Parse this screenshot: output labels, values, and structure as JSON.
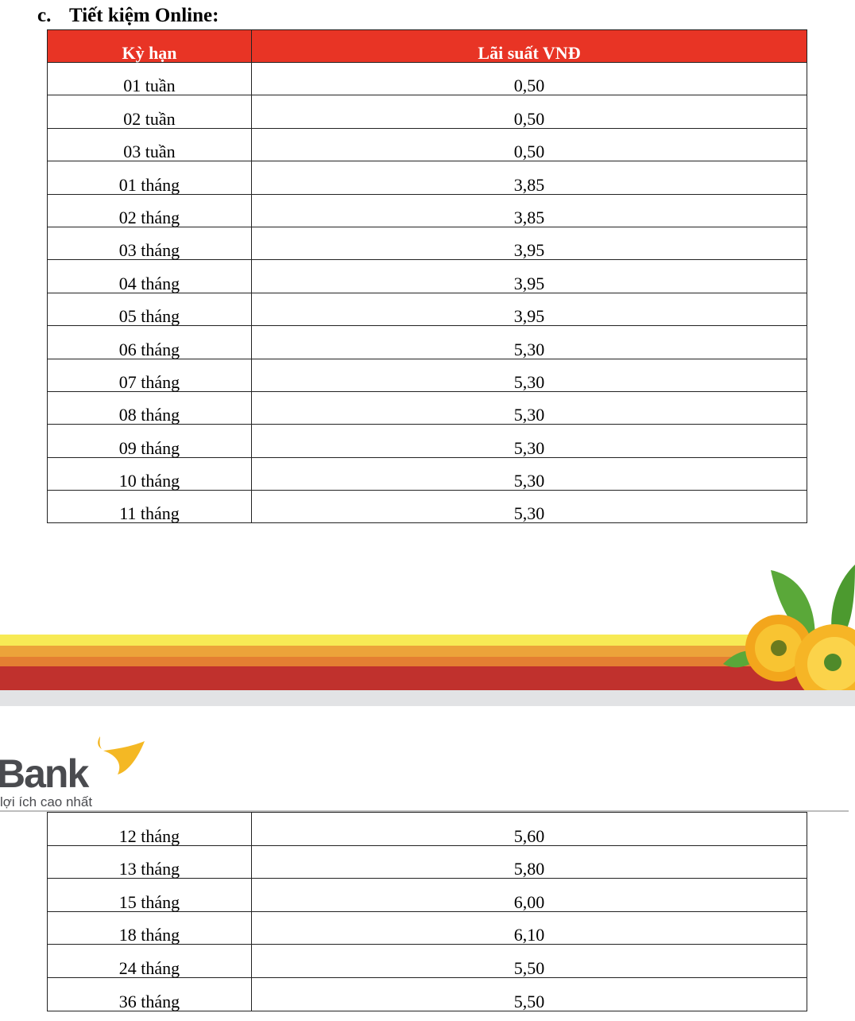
{
  "section": {
    "number": "c.",
    "title": "Tiết kiệm Online:"
  },
  "table_headers": [
    "Kỳ hạn",
    "Lãi suất VNĐ"
  ],
  "table1_rows": [
    {
      "term": "01 tuần",
      "rate": "0,50"
    },
    {
      "term": "02 tuần",
      "rate": "0,50"
    },
    {
      "term": "03 tuần",
      "rate": "0,50"
    },
    {
      "term": "01 tháng",
      "rate": "3,85"
    },
    {
      "term": "02 tháng",
      "rate": "3,85"
    },
    {
      "term": "03 tháng",
      "rate": "3,95"
    },
    {
      "term": "04 tháng",
      "rate": "3,95"
    },
    {
      "term": "05 tháng",
      "rate": "3,95"
    },
    {
      "term": "06 tháng",
      "rate": "5,30"
    },
    {
      "term": "07 tháng",
      "rate": "5,30"
    },
    {
      "term": "08 tháng",
      "rate": "5,30"
    },
    {
      "term": "09 tháng",
      "rate": "5,30"
    },
    {
      "term": "10 tháng",
      "rate": "5,30"
    },
    {
      "term": "11 tháng",
      "rate": "5,30"
    }
  ],
  "logo": {
    "text": "Bank",
    "tagline": "lợi ích cao nhất"
  },
  "table2_rows": [
    {
      "term": "12 tháng",
      "rate": "5,60"
    },
    {
      "term": "13 tháng",
      "rate": "5,80"
    },
    {
      "term": "15 tháng",
      "rate": "6,00"
    },
    {
      "term": "18 tháng",
      "rate": "6,10"
    },
    {
      "term": "24 tháng",
      "rate": "5,50"
    },
    {
      "term": "36 tháng",
      "rate": "5,50"
    }
  ],
  "colors": {
    "header_red": "#e83425",
    "band_yellow": "#f7ea55",
    "band_light_orange": "#eca33a",
    "band_orange": "#e47f32",
    "band_red": "#c0312d",
    "band_grey": "#e2e3e5"
  }
}
